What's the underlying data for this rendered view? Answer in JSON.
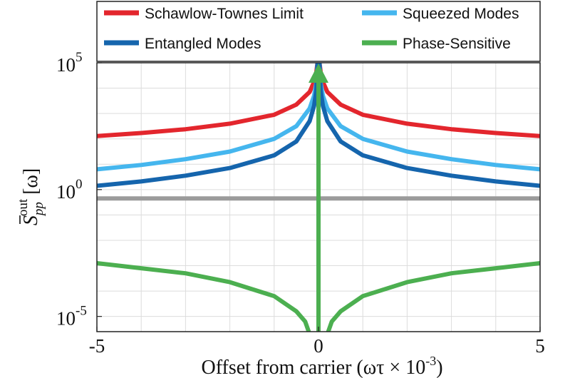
{
  "chart_data": {
    "type": "line",
    "xlabel": "Offset from carrier (ωτ × 10",
    "xlabel_exp": "-3",
    "xlabel_close": ")",
    "ylabel_main": "S",
    "ylabel_sup": "out",
    "ylabel_sub": "pp",
    "ylabel_arg": "[ω]",
    "xlim": [
      -5,
      5
    ],
    "ylim_log10": [
      -5.6,
      5
    ],
    "y_scale": "log",
    "grid": true,
    "legend_placement": "top",
    "x_ticks": [
      {
        "value": -5,
        "label": "-5"
      },
      {
        "value": 0,
        "label": "0"
      },
      {
        "value": 5,
        "label": "5"
      }
    ],
    "y_ticks": [
      {
        "exp": 5,
        "base": "10",
        "sup": "5"
      },
      {
        "exp": 0,
        "base": "10",
        "sup": "0"
      },
      {
        "exp": -5,
        "base": "10",
        "sup": "-5"
      }
    ],
    "reference_line": {
      "y_log10": -0.35,
      "color": "#9b9b9b"
    },
    "phase_arrow": {
      "x": 0,
      "color": "#4caf50"
    },
    "series": [
      {
        "name": "Schawlow-Townes Limit",
        "color": "#e3262d",
        "x": [
          0.02,
          0.05,
          0.1,
          0.2,
          0.5,
          1,
          2,
          3,
          4,
          5
        ],
        "y_log10": [
          5.05,
          4.63,
          4.25,
          3.85,
          3.35,
          2.95,
          2.6,
          2.38,
          2.23,
          2.11
        ]
      },
      {
        "name": "Squeezed Modes",
        "color": "#45b6ee",
        "x": [
          0.02,
          0.05,
          0.1,
          0.2,
          0.5,
          1,
          2,
          3,
          4,
          5
        ],
        "y_log10": [
          5.1,
          4.2,
          3.7,
          3.2,
          2.5,
          2.0,
          1.5,
          1.2,
          0.97,
          0.8
        ]
      },
      {
        "name": "Entangled Modes",
        "color": "#1565ad",
        "x": [
          0.02,
          0.05,
          0.1,
          0.2,
          0.5,
          1,
          2,
          3,
          4,
          5
        ],
        "y_log10": [
          5.1,
          3.9,
          3.3,
          2.7,
          1.9,
          1.35,
          0.85,
          0.55,
          0.32,
          0.15
        ]
      },
      {
        "name": "Phase-Sensitive",
        "color": "#4caf50",
        "x": [
          0.2,
          0.3,
          0.5,
          1,
          2,
          3,
          4,
          5
        ],
        "y_log10": [
          -5.7,
          -5.2,
          -4.8,
          -4.2,
          -3.65,
          -3.3,
          -3.1,
          -2.9
        ]
      }
    ]
  }
}
